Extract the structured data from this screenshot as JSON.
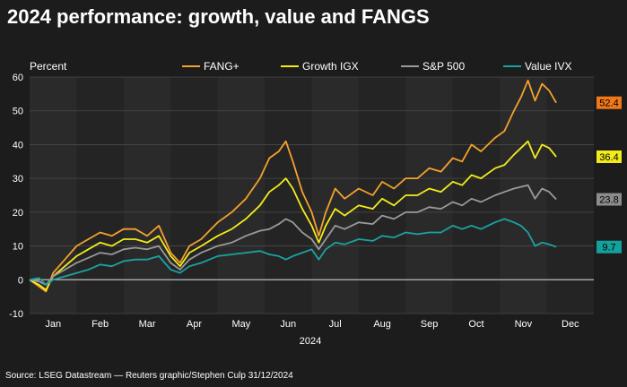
{
  "title": "2024 performance: growth, value and FANGS",
  "source": "Source: LSEG Datastream — Reuters graphic/Stephen Culp 31/12/2024",
  "chart_data": {
    "type": "line",
    "ylabel": "Percent",
    "xlabel": "2024",
    "ylim": [
      -10,
      60
    ],
    "yticks": [
      -10,
      0,
      10,
      20,
      30,
      40,
      50,
      60
    ],
    "months": [
      "Jan",
      "Feb",
      "Mar",
      "Apr",
      "May",
      "Jun",
      "Jul",
      "Aug",
      "Sep",
      "Oct",
      "Nov",
      "Dec"
    ],
    "grid": true,
    "legend_position": "top",
    "series": [
      {
        "name": "FANG+",
        "color": "#f5a12c",
        "end_label": "52.4",
        "label_bg": "#f07818",
        "points": [
          [
            0,
            0
          ],
          [
            0.2,
            -2
          ],
          [
            0.35,
            -3.5
          ],
          [
            0.5,
            2
          ],
          [
            0.75,
            6
          ],
          [
            1.0,
            10
          ],
          [
            1.25,
            12
          ],
          [
            1.5,
            14
          ],
          [
            1.75,
            13
          ],
          [
            2.0,
            15
          ],
          [
            2.25,
            15
          ],
          [
            2.5,
            13
          ],
          [
            2.75,
            16
          ],
          [
            3.0,
            8
          ],
          [
            3.2,
            5
          ],
          [
            3.4,
            10
          ],
          [
            3.65,
            12
          ],
          [
            4.0,
            17
          ],
          [
            4.3,
            20
          ],
          [
            4.6,
            24
          ],
          [
            4.9,
            30
          ],
          [
            5.1,
            36
          ],
          [
            5.3,
            38
          ],
          [
            5.45,
            41
          ],
          [
            5.6,
            35
          ],
          [
            5.8,
            26
          ],
          [
            6.0,
            20
          ],
          [
            6.15,
            13
          ],
          [
            6.3,
            20
          ],
          [
            6.5,
            27
          ],
          [
            6.7,
            24
          ],
          [
            7.0,
            27
          ],
          [
            7.3,
            25
          ],
          [
            7.5,
            29
          ],
          [
            7.75,
            27
          ],
          [
            8.0,
            30
          ],
          [
            8.25,
            30
          ],
          [
            8.5,
            33
          ],
          [
            8.75,
            32
          ],
          [
            9.0,
            36
          ],
          [
            9.2,
            35
          ],
          [
            9.4,
            40
          ],
          [
            9.6,
            38
          ],
          [
            9.9,
            42
          ],
          [
            10.1,
            44
          ],
          [
            10.3,
            50
          ],
          [
            10.45,
            54
          ],
          [
            10.6,
            59
          ],
          [
            10.75,
            53
          ],
          [
            10.9,
            58
          ],
          [
            11.05,
            56
          ],
          [
            11.2,
            52.4
          ]
        ]
      },
      {
        "name": "Growth IGX",
        "color": "#f2ec1a",
        "end_label": "36.4",
        "label_bg": "#f2ec1a",
        "points": [
          [
            0,
            0
          ],
          [
            0.2,
            -1.5
          ],
          [
            0.35,
            -3
          ],
          [
            0.5,
            1
          ],
          [
            0.75,
            4
          ],
          [
            1.0,
            7
          ],
          [
            1.25,
            9
          ],
          [
            1.5,
            11
          ],
          [
            1.75,
            10
          ],
          [
            2.0,
            12
          ],
          [
            2.25,
            12
          ],
          [
            2.5,
            11
          ],
          [
            2.75,
            13
          ],
          [
            3.0,
            7
          ],
          [
            3.2,
            4
          ],
          [
            3.4,
            8
          ],
          [
            3.65,
            10
          ],
          [
            4.0,
            13
          ],
          [
            4.3,
            15
          ],
          [
            4.6,
            18
          ],
          [
            4.9,
            22
          ],
          [
            5.1,
            26
          ],
          [
            5.3,
            28
          ],
          [
            5.45,
            30
          ],
          [
            5.6,
            27
          ],
          [
            5.8,
            21
          ],
          [
            6.0,
            16
          ],
          [
            6.15,
            11
          ],
          [
            6.3,
            16
          ],
          [
            6.5,
            21
          ],
          [
            6.7,
            19
          ],
          [
            7.0,
            22
          ],
          [
            7.3,
            21
          ],
          [
            7.5,
            24
          ],
          [
            7.75,
            22
          ],
          [
            8.0,
            25
          ],
          [
            8.25,
            25
          ],
          [
            8.5,
            27
          ],
          [
            8.75,
            26
          ],
          [
            9.0,
            29
          ],
          [
            9.2,
            28
          ],
          [
            9.4,
            31
          ],
          [
            9.6,
            30
          ],
          [
            9.9,
            33
          ],
          [
            10.1,
            34
          ],
          [
            10.3,
            37
          ],
          [
            10.45,
            39
          ],
          [
            10.6,
            41
          ],
          [
            10.75,
            36
          ],
          [
            10.9,
            40
          ],
          [
            11.05,
            39
          ],
          [
            11.2,
            36.4
          ]
        ]
      },
      {
        "name": "S&P 500",
        "color": "#9a9a9a",
        "end_label": "23.8",
        "label_bg": "#8c8c8c",
        "points": [
          [
            0,
            0
          ],
          [
            0.2,
            -0.5
          ],
          [
            0.35,
            -1.5
          ],
          [
            0.5,
            1
          ],
          [
            0.75,
            3
          ],
          [
            1.0,
            5
          ],
          [
            1.25,
            6.5
          ],
          [
            1.5,
            8
          ],
          [
            1.75,
            7.5
          ],
          [
            2.0,
            9
          ],
          [
            2.25,
            9.5
          ],
          [
            2.5,
            9
          ],
          [
            2.75,
            10
          ],
          [
            3.0,
            5
          ],
          [
            3.2,
            3
          ],
          [
            3.4,
            6
          ],
          [
            3.65,
            8
          ],
          [
            4.0,
            10
          ],
          [
            4.3,
            11
          ],
          [
            4.6,
            13
          ],
          [
            4.9,
            14.5
          ],
          [
            5.1,
            15
          ],
          [
            5.3,
            16.5
          ],
          [
            5.45,
            18
          ],
          [
            5.6,
            17
          ],
          [
            5.8,
            14
          ],
          [
            6.0,
            12
          ],
          [
            6.15,
            9
          ],
          [
            6.3,
            12
          ],
          [
            6.5,
            16
          ],
          [
            6.7,
            15
          ],
          [
            7.0,
            17
          ],
          [
            7.3,
            16.5
          ],
          [
            7.5,
            19
          ],
          [
            7.75,
            18
          ],
          [
            8.0,
            20
          ],
          [
            8.25,
            20
          ],
          [
            8.5,
            21.5
          ],
          [
            8.75,
            21
          ],
          [
            9.0,
            23
          ],
          [
            9.2,
            22
          ],
          [
            9.4,
            24
          ],
          [
            9.6,
            23
          ],
          [
            9.9,
            25
          ],
          [
            10.1,
            26
          ],
          [
            10.3,
            27
          ],
          [
            10.45,
            27.5
          ],
          [
            10.6,
            28
          ],
          [
            10.75,
            24
          ],
          [
            10.9,
            27
          ],
          [
            11.05,
            26
          ],
          [
            11.2,
            23.8
          ]
        ]
      },
      {
        "name": "Value IVX",
        "color": "#1aa3a0",
        "end_label": "9.7",
        "label_bg": "#14a09b",
        "points": [
          [
            0,
            0
          ],
          [
            0.2,
            0.5
          ],
          [
            0.35,
            -1.5
          ],
          [
            0.5,
            0
          ],
          [
            0.75,
            1
          ],
          [
            1.0,
            2
          ],
          [
            1.25,
            3
          ],
          [
            1.5,
            4.5
          ],
          [
            1.75,
            4
          ],
          [
            2.0,
            5.5
          ],
          [
            2.25,
            6
          ],
          [
            2.5,
            6
          ],
          [
            2.75,
            7
          ],
          [
            3.0,
            3
          ],
          [
            3.2,
            2
          ],
          [
            3.4,
            4
          ],
          [
            3.65,
            5
          ],
          [
            4.0,
            7
          ],
          [
            4.3,
            7.5
          ],
          [
            4.6,
            8
          ],
          [
            4.9,
            8.5
          ],
          [
            5.1,
            7.5
          ],
          [
            5.3,
            7
          ],
          [
            5.45,
            6
          ],
          [
            5.6,
            7
          ],
          [
            5.8,
            8
          ],
          [
            6.0,
            9
          ],
          [
            6.15,
            6
          ],
          [
            6.3,
            9
          ],
          [
            6.5,
            11
          ],
          [
            6.7,
            10.5
          ],
          [
            7.0,
            12
          ],
          [
            7.3,
            11.5
          ],
          [
            7.5,
            13
          ],
          [
            7.75,
            12.5
          ],
          [
            8.0,
            14
          ],
          [
            8.25,
            13.5
          ],
          [
            8.5,
            14
          ],
          [
            8.75,
            14
          ],
          [
            9.0,
            16
          ],
          [
            9.2,
            15
          ],
          [
            9.4,
            16
          ],
          [
            9.6,
            15
          ],
          [
            9.9,
            17
          ],
          [
            10.1,
            18
          ],
          [
            10.3,
            17
          ],
          [
            10.45,
            16
          ],
          [
            10.6,
            14
          ],
          [
            10.75,
            10
          ],
          [
            10.9,
            11
          ],
          [
            11.05,
            10.5
          ],
          [
            11.2,
            9.7
          ]
        ]
      }
    ]
  }
}
